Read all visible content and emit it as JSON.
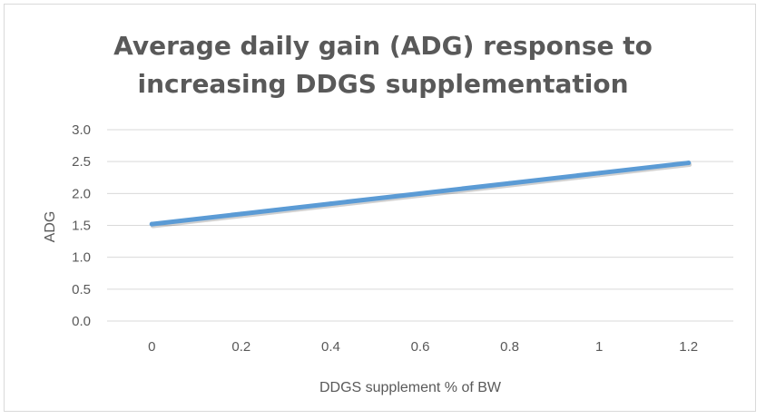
{
  "chart_data": {
    "type": "line",
    "title_lines": [
      "Average daily gain (ADG) response to",
      "increasing DDGS supplementation"
    ],
    "xlabel": "DDGS supplement % of BW",
    "ylabel": "ADG",
    "categories": [
      "0",
      "0.2",
      "0.4",
      "0.6",
      "0.8",
      "1",
      "1.2"
    ],
    "series": [
      {
        "values": [
          1.52,
          1.68,
          1.84,
          2.0,
          2.16,
          2.32,
          2.48
        ],
        "color": "#5b9bd5"
      }
    ],
    "ylim": [
      0,
      3
    ],
    "yticks": [
      "0.0",
      "0.5",
      "1.0",
      "1.5",
      "2.0",
      "2.5",
      "3.0"
    ],
    "grid": true,
    "legend": "none",
    "gridline_color": "#d9d9d9",
    "text_color": "#595959"
  }
}
